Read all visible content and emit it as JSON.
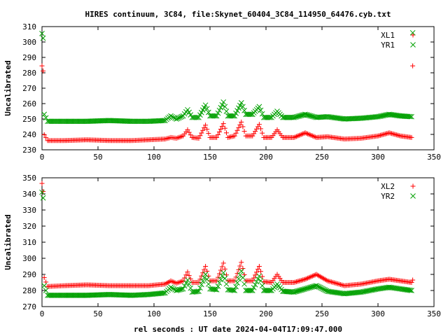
{
  "chart_data": {
    "title": "HIRES continuum, 3C84, file:Skynet_60404_3C84_114950_64476.cyb.txt",
    "xlabel": "rel seconds : UT date 2024-04-04T17:09:47.000",
    "colors": {
      "red": "#ff0000",
      "green": "#00a000"
    },
    "panels": [
      {
        "type": "scatter",
        "ylabel": "Uncalibrated",
        "xlim": [
          0,
          350
        ],
        "ylim": [
          230,
          310
        ],
        "xticks": [
          "0",
          "50",
          "100",
          "150",
          "200",
          "250",
          "300",
          "350"
        ],
        "yticks": [
          "230",
          "240",
          "250",
          "260",
          "270",
          "280",
          "290",
          "300",
          "310"
        ],
        "legend_position": "top-right",
        "series": [
          {
            "name": "XL1",
            "marker": "plus",
            "color": "red",
            "points": [
              [
                0,
                284.5
              ],
              [
                1,
                281.2
              ],
              [
                2,
                239.8
              ],
              [
                5,
                236
              ],
              [
                20,
                236
              ],
              [
                40,
                236.5
              ],
              [
                60,
                236
              ],
              [
                80,
                236
              ],
              [
                95,
                236.5
              ],
              [
                110,
                237
              ],
              [
                115,
                238
              ],
              [
                120,
                237.5
              ],
              [
                126,
                239
              ],
              [
                130,
                243
              ],
              [
                134,
                238
              ],
              [
                140,
                237.5
              ],
              [
                146,
                246
              ],
              [
                150,
                238
              ],
              [
                156,
                238
              ],
              [
                162,
                247
              ],
              [
                166,
                238
              ],
              [
                172,
                239
              ],
              [
                178,
                248
              ],
              [
                182,
                239
              ],
              [
                188,
                239
              ],
              [
                194,
                246.5
              ],
              [
                198,
                238
              ],
              [
                205,
                238
              ],
              [
                210,
                243
              ],
              [
                215,
                238
              ],
              [
                225,
                238
              ],
              [
                235,
                241
              ],
              [
                245,
                238
              ],
              [
                255,
                238.5
              ],
              [
                270,
                237
              ],
              [
                285,
                237.5
              ],
              [
                300,
                239
              ],
              [
                310,
                241
              ],
              [
                320,
                239
              ],
              [
                330,
                238
              ],
              [
                331,
                284.5
              ]
            ]
          },
          {
            "name": "YR1",
            "marker": "cross",
            "color": "green",
            "points": [
              [
                0,
                305.5
              ],
              [
                1,
                302.5
              ],
              [
                2,
                253
              ],
              [
                5,
                248.5
              ],
              [
                20,
                248.5
              ],
              [
                40,
                248.5
              ],
              [
                60,
                249
              ],
              [
                80,
                248.5
              ],
              [
                95,
                248.5
              ],
              [
                110,
                249
              ],
              [
                115,
                252
              ],
              [
                120,
                250
              ],
              [
                126,
                252
              ],
              [
                130,
                256
              ],
              [
                134,
                251
              ],
              [
                140,
                251
              ],
              [
                146,
                259
              ],
              [
                150,
                252
              ],
              [
                156,
                252
              ],
              [
                162,
                261
              ],
              [
                166,
                252
              ],
              [
                172,
                252
              ],
              [
                178,
                260.5
              ],
              [
                182,
                253
              ],
              [
                188,
                253
              ],
              [
                194,
                258
              ],
              [
                198,
                251
              ],
              [
                205,
                251
              ],
              [
                210,
                255
              ],
              [
                215,
                251
              ],
              [
                225,
                251
              ],
              [
                235,
                253
              ],
              [
                245,
                251
              ],
              [
                255,
                251.5
              ],
              [
                270,
                250
              ],
              [
                285,
                250.5
              ],
              [
                300,
                251.5
              ],
              [
                310,
                253
              ],
              [
                320,
                252
              ],
              [
                330,
                251.5
              ],
              [
                331,
                306
              ]
            ]
          }
        ]
      },
      {
        "type": "scatter",
        "ylabel": "Uncalibrated",
        "xlim": [
          0,
          350
        ],
        "ylim": [
          270,
          350
        ],
        "xticks": [
          "0",
          "50",
          "100",
          "150",
          "200",
          "250",
          "300",
          "350"
        ],
        "yticks": [
          "270",
          "280",
          "290",
          "300",
          "310",
          "320",
          "330",
          "340",
          "350"
        ],
        "legend_position": "top-right",
        "series": [
          {
            "name": "XL2",
            "marker": "plus",
            "color": "red",
            "points": [
              [
                0,
                346.5
              ],
              [
                1,
                341.5
              ],
              [
                2,
                288
              ],
              [
                5,
                282.5
              ],
              [
                20,
                283
              ],
              [
                40,
                283.5
              ],
              [
                60,
                283
              ],
              [
                80,
                283
              ],
              [
                95,
                283
              ],
              [
                110,
                284
              ],
              [
                115,
                286
              ],
              [
                120,
                284.5
              ],
              [
                126,
                286
              ],
              [
                130,
                291.5
              ],
              [
                134,
                285
              ],
              [
                140,
                285
              ],
              [
                146,
                295
              ],
              [
                150,
                286
              ],
              [
                156,
                286
              ],
              [
                162,
                297
              ],
              [
                166,
                286
              ],
              [
                172,
                286
              ],
              [
                178,
                297.5
              ],
              [
                182,
                286
              ],
              [
                188,
                286
              ],
              [
                194,
                295
              ],
              [
                198,
                285.5
              ],
              [
                205,
                285
              ],
              [
                210,
                290
              ],
              [
                215,
                285
              ],
              [
                225,
                285
              ],
              [
                235,
                287
              ],
              [
                245,
                290
              ],
              [
                255,
                286
              ],
              [
                270,
                283
              ],
              [
                285,
                284
              ],
              [
                300,
                286
              ],
              [
                310,
                287
              ],
              [
                320,
                286
              ],
              [
                330,
                285
              ],
              [
                331,
                286.5
              ]
            ]
          },
          {
            "name": "YR2",
            "marker": "cross",
            "color": "green",
            "points": [
              [
                0,
                341
              ],
              [
                1,
                337.5
              ],
              [
                2,
                283
              ],
              [
                5,
                277
              ],
              [
                20,
                277
              ],
              [
                40,
                277
              ],
              [
                60,
                277.5
              ],
              [
                80,
                277
              ],
              [
                95,
                277.5
              ],
              [
                110,
                278.5
              ],
              [
                115,
                282
              ],
              [
                120,
                280
              ],
              [
                126,
                281
              ],
              [
                130,
                286.5
              ],
              [
                134,
                279
              ],
              [
                140,
                279.5
              ],
              [
                146,
                290
              ],
              [
                150,
                281
              ],
              [
                156,
                280.5
              ],
              [
                162,
                291
              ],
              [
                166,
                280.5
              ],
              [
                172,
                280
              ],
              [
                178,
                292
              ],
              [
                182,
                280
              ],
              [
                188,
                280
              ],
              [
                194,
                289
              ],
              [
                198,
                280
              ],
              [
                205,
                280
              ],
              [
                210,
                284
              ],
              [
                215,
                279.5
              ],
              [
                225,
                279
              ],
              [
                235,
                281
              ],
              [
                245,
                283
              ],
              [
                255,
                279.5
              ],
              [
                270,
                278
              ],
              [
                285,
                279
              ],
              [
                300,
                281
              ],
              [
                310,
                282
              ],
              [
                320,
                281
              ],
              [
                330,
                280
              ]
            ]
          }
        ]
      }
    ]
  }
}
